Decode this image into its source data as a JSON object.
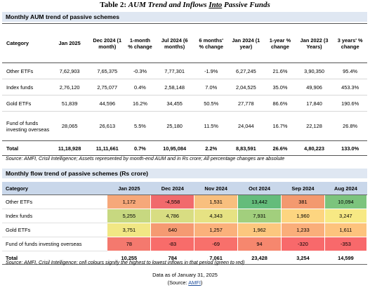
{
  "title": {
    "prefix": "Table 2: ",
    "italic1": "AUM Trend and Inflows ",
    "underlined": "Into",
    "italic2": " Passive Funds"
  },
  "aum": {
    "heading": "Monthly AUM trend of passive schemes",
    "headers": [
      "Category",
      "Jan 2025",
      "Dec 2024 (1 month)",
      "1-month % change",
      "Jul 2024 (6 months)",
      "6 months' % change",
      "Jan 2024 (1 year)",
      "1-year % change",
      "Jan 2022 (3 Years)",
      "3 years' % change"
    ],
    "rows": [
      [
        "Other ETFs",
        "7,62,903",
        "7,65,375",
        "-0.3%",
        "7,77,301",
        "-1.9%",
        "6,27,245",
        "21.6%",
        "3,90,350",
        "95.4%"
      ],
      [
        "Index funds",
        "2,76,120",
        "2,75,077",
        "0.4%",
        "2,58,148",
        "7.0%",
        "2,04,525",
        "35.0%",
        "49,906",
        "453.3%"
      ],
      [
        "Gold ETFs",
        "51,839",
        "44,596",
        "16.2%",
        "34,455",
        "50.5%",
        "27,778",
        "86.6%",
        "17,840",
        "190.6%"
      ],
      [
        "Fund of funds investing overseas",
        "28,065",
        "26,613",
        "5.5%",
        "25,180",
        "11.5%",
        "24,044",
        "16.7%",
        "22,128",
        "26.8%"
      ]
    ],
    "total": [
      "Total",
      "11,18,928",
      "11,11,661",
      "0.7%",
      "10,95,084",
      "2.2%",
      "8,83,591",
      "26.6%",
      "4,80,223",
      "133.0%"
    ],
    "source": "Source: AMFI, Crisil Intelligence; Assets represented by month-end AUM and in Rs crore; All percentage changes are absolute"
  },
  "flow": {
    "heading": "Monthly flow trend of passive schemes (Rs crore)",
    "headers": [
      "Category",
      "Jan 2025",
      "Dec 2024",
      "Nov 2024",
      "Oct 2024",
      "Sep 2024",
      "Aug 2024"
    ],
    "rows": [
      {
        "cells": [
          "Other ETFs",
          "1,172",
          "-4,558",
          "1,531",
          "13,442",
          "381",
          "10,094"
        ],
        "colors": [
          "#f6a87a",
          "#f16a6c",
          "#f8bf7e",
          "#64bc7b",
          "#f3996f",
          "#7cc47d"
        ]
      },
      {
        "cells": [
          "Index funds",
          "5,255",
          "4,786",
          "4,343",
          "7,931",
          "1,960",
          "3,247"
        ],
        "colors": [
          "#c7d880",
          "#d8dd82",
          "#e6e283",
          "#a2cf7d",
          "#fdd580",
          "#f7e984"
        ]
      },
      {
        "cells": [
          "Gold ETFs",
          "3,751",
          "640",
          "1,257",
          "1,962",
          "1,233",
          "1,611"
        ],
        "colors": [
          "#f1e784",
          "#f59a72",
          "#fbb17b",
          "#fcc77e",
          "#faae7a",
          "#fdc37d"
        ]
      },
      {
        "cells": [
          "Fund of funds investing overseas",
          "78",
          "-83",
          "-69",
          "94",
          "-320",
          "-353"
        ],
        "colors": [
          "#f4796e",
          "#f86c6a",
          "#f8706b",
          "#f6876e",
          "#f8696b",
          "#f8696b"
        ]
      }
    ],
    "total": [
      "Total",
      "10,255",
      "784",
      "7,061",
      "23,428",
      "3,254",
      "14,599"
    ],
    "source": "Source: AMFI, Crisil Intelligence; cell colours signify the highest to lowest inflows in that period (green to red)"
  },
  "footer": {
    "date_line": "Data as of January 31, 2025",
    "source_open": "(Source: ",
    "source_link": "AMFI",
    "source_close": ")"
  }
}
